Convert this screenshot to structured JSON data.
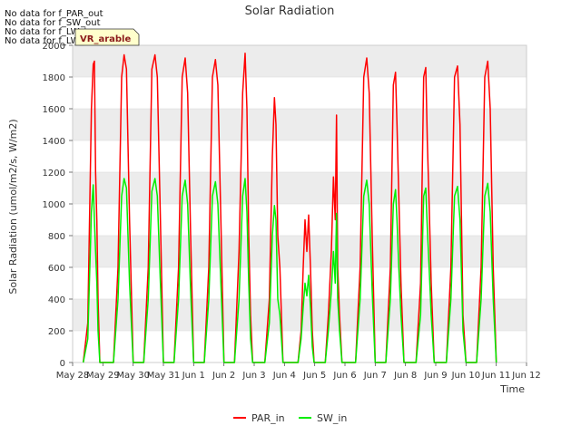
{
  "nodata_notes": [
    "No data for f_PAR_out",
    "No data for f_SW_out",
    "No data for f_LW_in",
    "No data for f_LW_out"
  ],
  "badge_label": "VR_arable",
  "chart_data": {
    "type": "line",
    "title": "Solar Radiation",
    "xlabel": "Time",
    "ylabel": "Solar Radiation (umol/m2/s, W/m2)",
    "xlim": [
      0,
      15
    ],
    "ylim": [
      0,
      2000
    ],
    "x_ticks": [
      {
        "value": 0,
        "label": "May 28"
      },
      {
        "value": 1,
        "label": "May 29"
      },
      {
        "value": 2,
        "label": "May 30"
      },
      {
        "value": 3,
        "label": "May 31"
      },
      {
        "value": 4,
        "label": "Jun 1"
      },
      {
        "value": 5,
        "label": "Jun 2"
      },
      {
        "value": 6,
        "label": "Jun 3"
      },
      {
        "value": 7,
        "label": "Jun 4"
      },
      {
        "value": 8,
        "label": "Jun 5"
      },
      {
        "value": 9,
        "label": "Jun 6"
      },
      {
        "value": 10,
        "label": "Jun 7"
      },
      {
        "value": 11,
        "label": "Jun 8"
      },
      {
        "value": 12,
        "label": "Jun 9"
      },
      {
        "value": 13,
        "label": "Jun 10"
      },
      {
        "value": 14,
        "label": "Jun 11"
      },
      {
        "value": 15,
        "label": "Jun 12"
      }
    ],
    "y_ticks": [
      0,
      200,
      400,
      600,
      800,
      1000,
      1200,
      1400,
      1600,
      1800,
      2000
    ],
    "grid": true,
    "legend_position": "bottom-center",
    "series": [
      {
        "name": "PAR_in",
        "color": "#ff0000",
        "daily_peaks": [
          1900,
          1940,
          1940,
          1920,
          1910,
          1950,
          1670,
          930,
          1560,
          1920,
          1830,
          1860,
          1870,
          1900
        ],
        "points": [
          [
            0.35,
            0
          ],
          [
            0.5,
            250
          ],
          [
            0.62,
            1600
          ],
          [
            0.68,
            1880
          ],
          [
            0.72,
            1900
          ],
          [
            0.76,
            1200
          ],
          [
            0.8,
            890
          ],
          [
            0.84,
            400
          ],
          [
            0.9,
            0
          ],
          [
            1.35,
            0
          ],
          [
            1.5,
            600
          ],
          [
            1.62,
            1800
          ],
          [
            1.7,
            1940
          ],
          [
            1.78,
            1850
          ],
          [
            1.88,
            900
          ],
          [
            2.0,
            0
          ],
          [
            2.35,
            0
          ],
          [
            2.5,
            600
          ],
          [
            2.62,
            1850
          ],
          [
            2.72,
            1940
          ],
          [
            2.8,
            1800
          ],
          [
            2.9,
            900
          ],
          [
            3.0,
            0
          ],
          [
            3.35,
            0
          ],
          [
            3.5,
            600
          ],
          [
            3.62,
            1800
          ],
          [
            3.72,
            1920
          ],
          [
            3.8,
            1700
          ],
          [
            3.9,
            800
          ],
          [
            4.0,
            0
          ],
          [
            4.35,
            0
          ],
          [
            4.5,
            600
          ],
          [
            4.62,
            1800
          ],
          [
            4.72,
            1910
          ],
          [
            4.8,
            1750
          ],
          [
            4.9,
            900
          ],
          [
            5.0,
            0
          ],
          [
            5.35,
            0
          ],
          [
            5.5,
            700
          ],
          [
            5.62,
            1700
          ],
          [
            5.7,
            1950
          ],
          [
            5.76,
            1600
          ],
          [
            5.82,
            800
          ],
          [
            5.88,
            300
          ],
          [
            5.95,
            0
          ],
          [
            6.35,
            0
          ],
          [
            6.5,
            400
          ],
          [
            6.6,
            1300
          ],
          [
            6.67,
            1670
          ],
          [
            6.72,
            1500
          ],
          [
            6.78,
            800
          ],
          [
            6.85,
            600
          ],
          [
            6.95,
            0
          ],
          [
            7.45,
            0
          ],
          [
            7.55,
            200
          ],
          [
            7.62,
            600
          ],
          [
            7.68,
            900
          ],
          [
            7.74,
            700
          ],
          [
            7.8,
            930
          ],
          [
            7.86,
            600
          ],
          [
            7.92,
            200
          ],
          [
            7.98,
            0
          ],
          [
            8.35,
            0
          ],
          [
            8.45,
            300
          ],
          [
            8.55,
            700
          ],
          [
            8.62,
            1170
          ],
          [
            8.68,
            900
          ],
          [
            8.72,
            1560
          ],
          [
            8.76,
            600
          ],
          [
            8.82,
            300
          ],
          [
            8.9,
            0
          ],
          [
            9.35,
            0
          ],
          [
            9.5,
            600
          ],
          [
            9.62,
            1800
          ],
          [
            9.72,
            1920
          ],
          [
            9.8,
            1700
          ],
          [
            9.9,
            800
          ],
          [
            10.0,
            0
          ],
          [
            10.35,
            0
          ],
          [
            10.5,
            600
          ],
          [
            10.6,
            1750
          ],
          [
            10.67,
            1830
          ],
          [
            10.72,
            1500
          ],
          [
            10.78,
            1050
          ],
          [
            10.85,
            500
          ],
          [
            10.95,
            0
          ],
          [
            11.35,
            0
          ],
          [
            11.5,
            500
          ],
          [
            11.6,
            1800
          ],
          [
            11.67,
            1860
          ],
          [
            11.72,
            1400
          ],
          [
            11.78,
            1000
          ],
          [
            11.85,
            500
          ],
          [
            11.95,
            0
          ],
          [
            12.35,
            0
          ],
          [
            12.5,
            600
          ],
          [
            12.62,
            1800
          ],
          [
            12.72,
            1870
          ],
          [
            12.8,
            1500
          ],
          [
            12.9,
            300
          ],
          [
            13.0,
            0
          ],
          [
            13.35,
            0
          ],
          [
            13.5,
            600
          ],
          [
            13.62,
            1800
          ],
          [
            13.72,
            1900
          ],
          [
            13.8,
            1600
          ],
          [
            13.9,
            600
          ],
          [
            14.0,
            0
          ]
        ]
      },
      {
        "name": "SW_in",
        "color": "#00ee00",
        "daily_peaks": [
          1120,
          1160,
          1160,
          1150,
          1140,
          1160,
          990,
          550,
          940,
          1150,
          1090,
          1100,
          1110,
          1130
        ],
        "points": [
          [
            0.35,
            0
          ],
          [
            0.5,
            150
          ],
          [
            0.62,
            950
          ],
          [
            0.68,
            1120
          ],
          [
            0.72,
            900
          ],
          [
            0.76,
            700
          ],
          [
            0.8,
            500
          ],
          [
            0.84,
            200
          ],
          [
            0.9,
            0
          ],
          [
            1.35,
            0
          ],
          [
            1.5,
            400
          ],
          [
            1.62,
            1050
          ],
          [
            1.7,
            1160
          ],
          [
            1.78,
            1100
          ],
          [
            1.88,
            500
          ],
          [
            2.0,
            0
          ],
          [
            2.35,
            0
          ],
          [
            2.5,
            400
          ],
          [
            2.62,
            1080
          ],
          [
            2.72,
            1160
          ],
          [
            2.8,
            1050
          ],
          [
            2.9,
            500
          ],
          [
            3.0,
            0
          ],
          [
            3.35,
            0
          ],
          [
            3.5,
            400
          ],
          [
            3.62,
            1050
          ],
          [
            3.72,
            1150
          ],
          [
            3.8,
            1000
          ],
          [
            3.9,
            450
          ],
          [
            4.0,
            0
          ],
          [
            4.35,
            0
          ],
          [
            4.5,
            400
          ],
          [
            4.62,
            1050
          ],
          [
            4.72,
            1140
          ],
          [
            4.8,
            1000
          ],
          [
            4.9,
            500
          ],
          [
            5.0,
            0
          ],
          [
            5.35,
            0
          ],
          [
            5.5,
            400
          ],
          [
            5.62,
            1050
          ],
          [
            5.7,
            1160
          ],
          [
            5.76,
            950
          ],
          [
            5.82,
            500
          ],
          [
            5.88,
            150
          ],
          [
            5.95,
            0
          ],
          [
            6.35,
            0
          ],
          [
            6.5,
            250
          ],
          [
            6.6,
            800
          ],
          [
            6.67,
            990
          ],
          [
            6.72,
            900
          ],
          [
            6.78,
            400
          ],
          [
            6.85,
            300
          ],
          [
            6.95,
            0
          ],
          [
            7.45,
            0
          ],
          [
            7.55,
            150
          ],
          [
            7.62,
            350
          ],
          [
            7.68,
            500
          ],
          [
            7.74,
            420
          ],
          [
            7.8,
            550
          ],
          [
            7.86,
            350
          ],
          [
            7.92,
            100
          ],
          [
            7.98,
            0
          ],
          [
            8.35,
            0
          ],
          [
            8.45,
            200
          ],
          [
            8.55,
            450
          ],
          [
            8.62,
            700
          ],
          [
            8.68,
            500
          ],
          [
            8.72,
            940
          ],
          [
            8.76,
            400
          ],
          [
            8.82,
            200
          ],
          [
            8.9,
            0
          ],
          [
            9.35,
            0
          ],
          [
            9.5,
            400
          ],
          [
            9.62,
            1050
          ],
          [
            9.72,
            1150
          ],
          [
            9.8,
            1000
          ],
          [
            9.9,
            450
          ],
          [
            10.0,
            0
          ],
          [
            10.35,
            0
          ],
          [
            10.5,
            400
          ],
          [
            10.6,
            1000
          ],
          [
            10.67,
            1090
          ],
          [
            10.72,
            900
          ],
          [
            10.78,
            600
          ],
          [
            10.85,
            300
          ],
          [
            10.95,
            0
          ],
          [
            11.35,
            0
          ],
          [
            11.5,
            300
          ],
          [
            11.6,
            1050
          ],
          [
            11.67,
            1100
          ],
          [
            11.72,
            850
          ],
          [
            11.78,
            600
          ],
          [
            11.85,
            300
          ],
          [
            11.95,
            0
          ],
          [
            12.35,
            0
          ],
          [
            12.5,
            400
          ],
          [
            12.62,
            1050
          ],
          [
            12.72,
            1110
          ],
          [
            12.8,
            900
          ],
          [
            12.9,
            200
          ],
          [
            13.0,
            0
          ],
          [
            13.35,
            0
          ],
          [
            13.5,
            400
          ],
          [
            13.62,
            1050
          ],
          [
            13.72,
            1130
          ],
          [
            13.8,
            950
          ],
          [
            13.9,
            400
          ],
          [
            14.0,
            0
          ]
        ]
      }
    ]
  }
}
